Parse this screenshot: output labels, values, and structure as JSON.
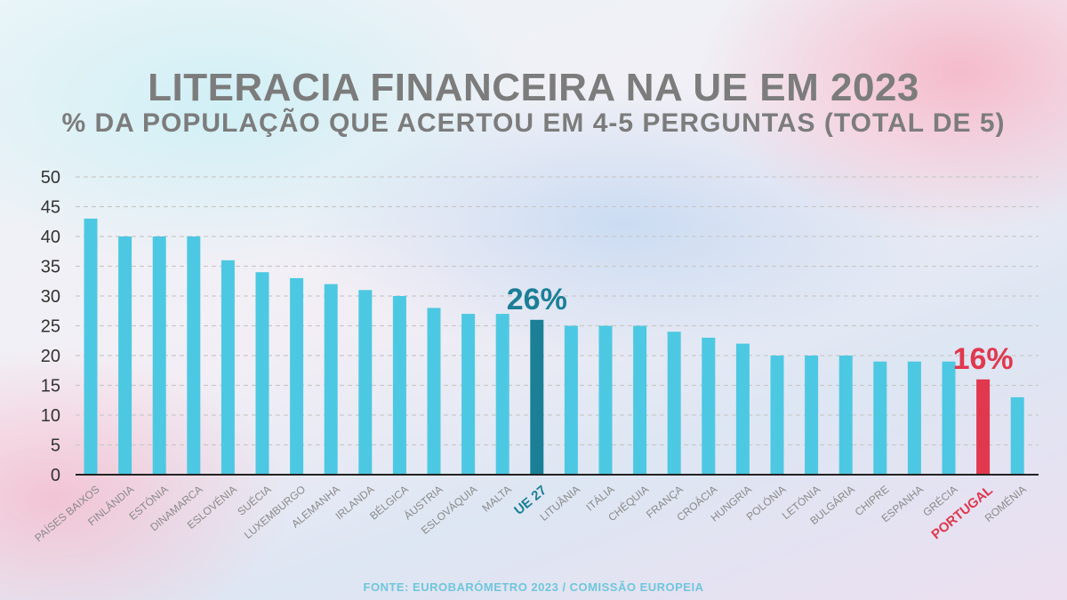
{
  "chart_data": {
    "type": "bar",
    "title": "LITERACIA FINANCEIRA NA UE EM 2023",
    "subtitle": "% DA POPULAÇÃO QUE ACERTOU EM 4-5 PERGUNTAS (TOTAL DE 5)",
    "categories": [
      "PAÍSES BAIXOS",
      "FINLÂNDIA",
      "ESTÓNIA",
      "DINAMARCA",
      "ESLOVÉNIA",
      "SUÉCIA",
      "LUXEMBURGO",
      "ALEMANHA",
      "IRLANDA",
      "BÉLGICA",
      "ÁUSTRIA",
      "ESLOVÁQUIA",
      "MALTA",
      "UE 27",
      "LITUÂNIA",
      "ITÁLIA",
      "CHÉQUIA",
      "FRANÇA",
      "CROÁCIA",
      "HUNGRIA",
      "POLÓNIA",
      "LETÓNIA",
      "BULGÁRIA",
      "CHIPRE",
      "ESPANHA",
      "GRÉCIA",
      "PORTUGAL",
      "ROMÉNIA"
    ],
    "values": [
      43,
      40,
      40,
      40,
      36,
      34,
      33,
      32,
      31,
      30,
      28,
      27,
      27,
      26,
      25,
      25,
      25,
      24,
      23,
      22,
      20,
      20,
      20,
      19,
      19,
      19,
      16,
      13
    ],
    "ylim": [
      0,
      50
    ],
    "yticks": [
      0,
      5,
      10,
      15,
      20,
      25,
      30,
      35,
      40,
      45,
      50
    ],
    "grid": true,
    "colors": {
      "default": "#4dc8e2",
      "highlight_eu": "#1b7f96",
      "highlight_pt": "#e0384f",
      "axis_text": "#333333",
      "label_text": "#8a8a8a",
      "grid": "#c9c9c9"
    },
    "highlights": [
      {
        "category": "UE 27",
        "color": "#1b7f96",
        "annotation": "26%"
      },
      {
        "category": "PORTUGAL",
        "color": "#e0384f",
        "annotation": "16%"
      }
    ]
  },
  "source": "FONTE: EUROBARÓMETRO 2023 / COMISSÃO EUROPEIA"
}
